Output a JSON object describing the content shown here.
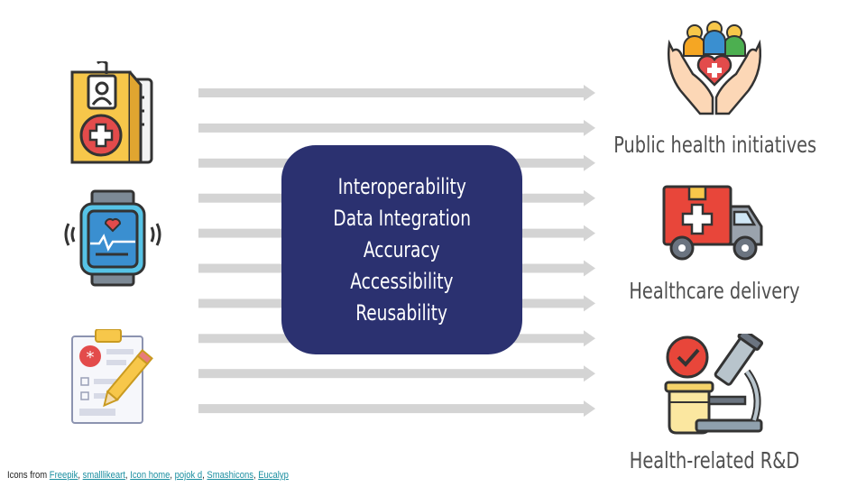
{
  "center": {
    "items": [
      "Interoperability",
      "Data Integration",
      "Accuracy",
      "Accessibility",
      "Reusability"
    ]
  },
  "outcomes": [
    {
      "label": "Public health initiatives",
      "icon": "hands-community-heart-icon"
    },
    {
      "label": "Healthcare delivery",
      "icon": "ambulance-truck-icon"
    },
    {
      "label": "Health-related R&D",
      "icon": "microscope-lab-icon"
    }
  ],
  "sources": [
    {
      "icon": "medical-record-folder-icon"
    },
    {
      "icon": "smartwatch-heart-monitor-icon"
    },
    {
      "icon": "clipboard-form-pencil-icon"
    }
  ],
  "credits": {
    "prefix": "Icons from",
    "links": [
      "Freepik",
      "smalllikeart",
      "Icon home",
      "pojok d",
      "Smashicons",
      "Eucalyp"
    ]
  },
  "colors": {
    "center_box": "#2b3170",
    "arrow": "#d4d4d4",
    "label_text": "#505050",
    "link": "#1a8ea0"
  }
}
